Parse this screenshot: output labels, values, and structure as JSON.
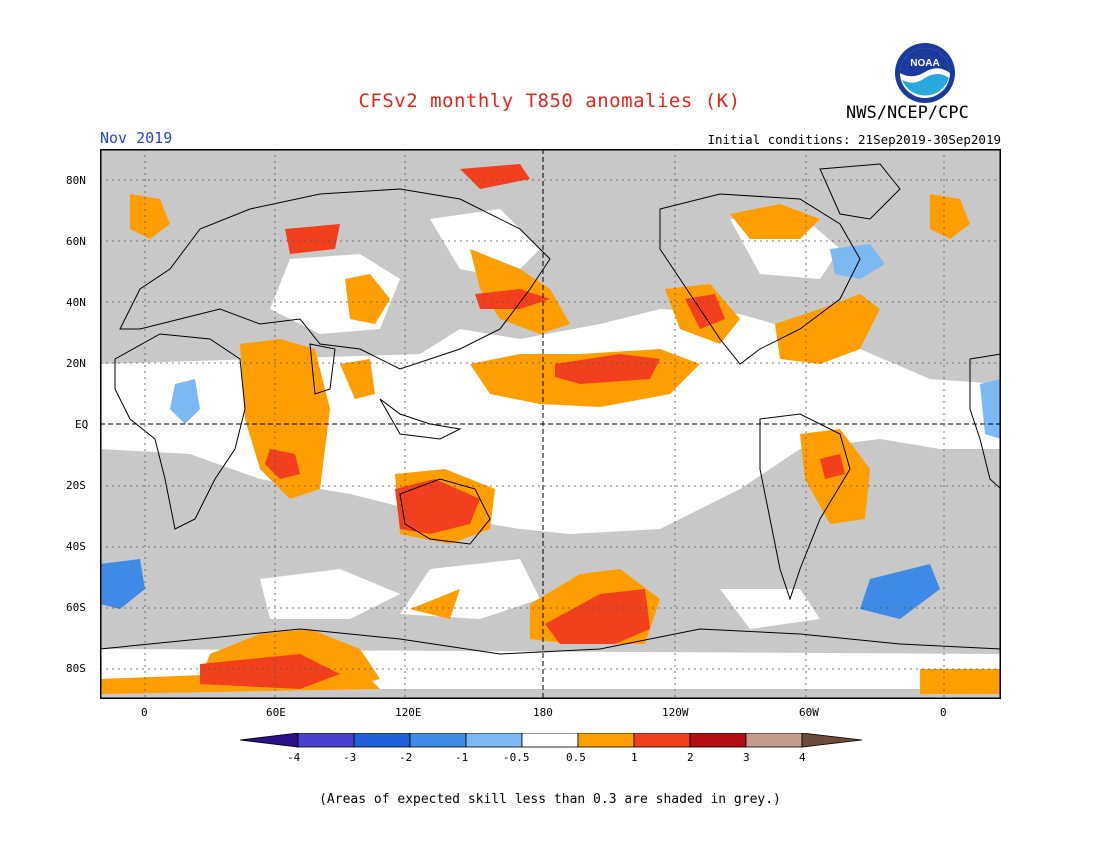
{
  "title": "CFSv2 monthly T850 anomalies (K)",
  "agency": "NWS/NCEP/CPC",
  "logo_text": "NOAA",
  "period": "Nov 2019",
  "initial_conditions": "Initial conditions: 21Sep2019-30Sep2019",
  "footnote": "(Areas of expected skill less than 0.3 are shaded in grey.)",
  "map": {
    "projection": "equirectangular",
    "central_longitude": 180,
    "lon_ticks": [
      "0",
      "60E",
      "120E",
      "180",
      "120W",
      "60W",
      "0"
    ],
    "lat_ticks": [
      "80N",
      "60N",
      "40N",
      "20N",
      "EQ",
      "20S",
      "40S",
      "60S",
      "80S"
    ],
    "background_color": "#c8c8c8",
    "land_outline_color": "#000000"
  },
  "legend": {
    "tick_labels": [
      "-4",
      "-3",
      "-2",
      "-1",
      "-0.5",
      "0.5",
      "1",
      "2",
      "3",
      "4"
    ],
    "colors": [
      "#2c0f8c",
      "#4a3fcf",
      "#1f5fd8",
      "#3e8ae6",
      "#7cb8f2",
      "#ffffff",
      "#ff9e00",
      "#f2401e",
      "#b30f12",
      "#c49b8d",
      "#6e4a3c"
    ]
  },
  "regions": {
    "light_warm": "#ff9e00",
    "warm": "#f2401e",
    "light_cool": "#7cb8f2",
    "cool": "#3e8ae6",
    "neutral": "#ffffff"
  }
}
